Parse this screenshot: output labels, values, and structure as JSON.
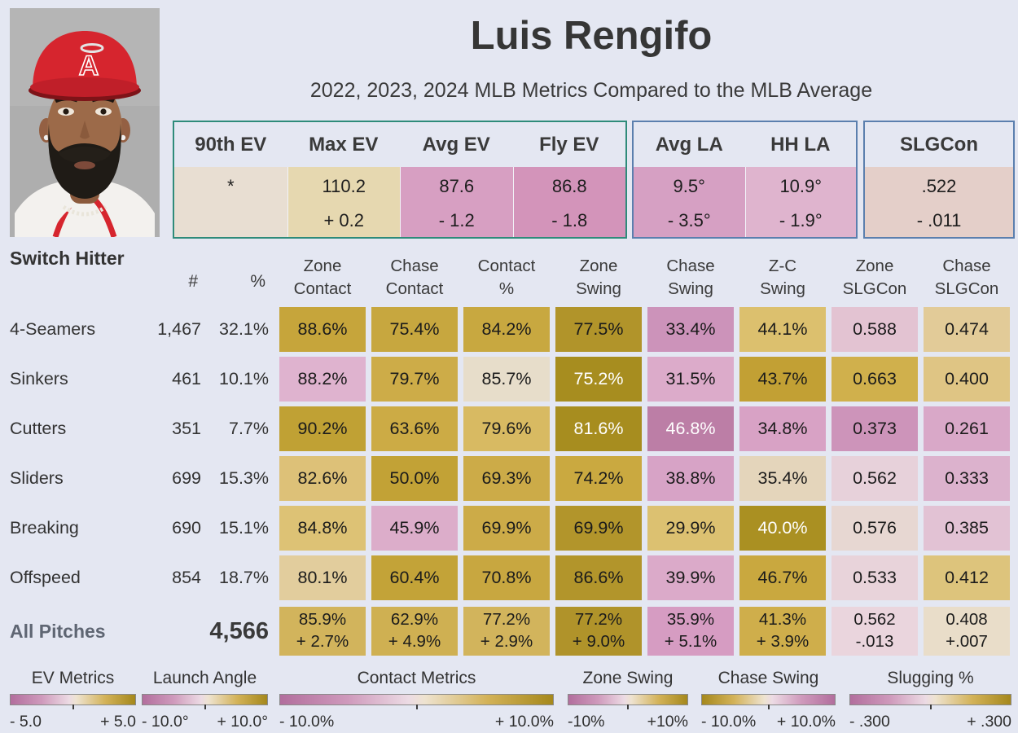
{
  "header": {
    "title": "Luis Rengifo",
    "subtitle": "2022, 2023, 2024 MLB Metrics Compared to the MLB Average",
    "handedness": "Switch Hitter"
  },
  "theme": {
    "accent_pink": "#b26e9d",
    "accent_gold": "#a5881c",
    "page_background": "#e4e7f2",
    "ev_group_border": "#2e8b7a",
    "la_group_border": "#5b7fae"
  },
  "top_metrics": [
    {
      "border": "#2e8b7a",
      "cols": [
        {
          "label": "90th EV",
          "value": "*",
          "delta": "",
          "bg": "#e8ded2"
        },
        {
          "label": "Max EV",
          "value": "110.2",
          "delta": "+ 0.2",
          "bg": "#e6d8b0"
        },
        {
          "label": "Avg EV",
          "value": "87.6",
          "delta": "- 1.2",
          "bg": "#d79fc2"
        },
        {
          "label": "Fly EV",
          "value": "86.8",
          "delta": "- 1.8",
          "bg": "#d394ba"
        }
      ]
    },
    {
      "border": "#5b7fae",
      "cols": [
        {
          "label": "Avg LA",
          "value": "9.5°",
          "delta": "- 3.5°",
          "bg": "#d6a0c3"
        },
        {
          "label": "HH LA",
          "value": "10.9°",
          "delta": "- 1.9°",
          "bg": "#dfb4ce"
        }
      ]
    },
    {
      "border": "#5b7fae",
      "cols": [
        {
          "label": "SLGCon",
          "value": ".522",
          "delta": "- .011",
          "bg": "#e4cfc9"
        }
      ]
    }
  ],
  "chart_data": {
    "type": "heatmap",
    "count_header": "#",
    "pct_header": "%",
    "columns": [
      "Zone\nContact",
      "Chase\nContact",
      "Contact\n%",
      "Zone\nSwing",
      "Chase\nSwing",
      "Z-C\nSwing",
      "Zone\nSLGCon",
      "Chase\nSLGCon"
    ],
    "rows": [
      {
        "label": "4-Seamers",
        "count": "1,467",
        "pct": "32.1%",
        "cells": [
          {
            "v": "88.6%",
            "bg": "#c6a53b"
          },
          {
            "v": "75.4%",
            "bg": "#c7a73f"
          },
          {
            "v": "84.2%",
            "bg": "#c8a840"
          },
          {
            "v": "77.5%",
            "bg": "#b1942a"
          },
          {
            "v": "33.4%",
            "bg": "#cc93ba"
          },
          {
            "v": "44.1%",
            "bg": "#dcc06e"
          },
          {
            "v": "0.588",
            "bg": "#e3c3d2"
          },
          {
            "v": "0.474",
            "bg": "#e2cb98"
          }
        ]
      },
      {
        "label": "Sinkers",
        "count": "461",
        "pct": "10.1%",
        "cells": [
          {
            "v": "88.2%",
            "bg": "#dfb3cf"
          },
          {
            "v": "79.7%",
            "bg": "#cdac48"
          },
          {
            "v": "85.7%",
            "bg": "#e7ddca"
          },
          {
            "v": "75.2%",
            "bg": "#a78d1f",
            "fg": "#ffffff"
          },
          {
            "v": "31.5%",
            "bg": "#dcabca"
          },
          {
            "v": "43.7%",
            "bg": "#c2a034"
          },
          {
            "v": "0.663",
            "bg": "#d0b04c"
          },
          {
            "v": "0.400",
            "bg": "#dfc584"
          }
        ]
      },
      {
        "label": "Cutters",
        "count": "351",
        "pct": "7.7%",
        "cells": [
          {
            "v": "90.2%",
            "bg": "#c0a134"
          },
          {
            "v": "63.6%",
            "bg": "#ccab45"
          },
          {
            "v": "79.6%",
            "bg": "#d8ba62"
          },
          {
            "v": "81.6%",
            "bg": "#a78d1f",
            "fg": "#ffffff"
          },
          {
            "v": "46.8%",
            "bg": "#bc7ea6",
            "fg": "#ffffff"
          },
          {
            "v": "34.8%",
            "bg": "#d8a2c5"
          },
          {
            "v": "0.373",
            "bg": "#cd94ba"
          },
          {
            "v": "0.261",
            "bg": "#d9a8c8"
          }
        ]
      },
      {
        "label": "Sliders",
        "count": "699",
        "pct": "15.3%",
        "cells": [
          {
            "v": "82.6%",
            "bg": "#ddc178"
          },
          {
            "v": "50.0%",
            "bg": "#c2a236"
          },
          {
            "v": "69.3%",
            "bg": "#ccab48"
          },
          {
            "v": "74.2%",
            "bg": "#caa940"
          },
          {
            "v": "38.8%",
            "bg": "#d7a3c6"
          },
          {
            "v": "35.4%",
            "bg": "#e4d5bb"
          },
          {
            "v": "0.562",
            "bg": "#e7d1da"
          },
          {
            "v": "0.333",
            "bg": "#dcb2cd"
          }
        ]
      },
      {
        "label": "Breaking",
        "count": "690",
        "pct": "15.1%",
        "cells": [
          {
            "v": "84.8%",
            "bg": "#ddc275"
          },
          {
            "v": "45.9%",
            "bg": "#dcadca"
          },
          {
            "v": "69.9%",
            "bg": "#ccab48"
          },
          {
            "v": "69.9%",
            "bg": "#b2952b"
          },
          {
            "v": "29.9%",
            "bg": "#dcc171"
          },
          {
            "v": "40.0%",
            "bg": "#aa9022",
            "fg": "#ffffff"
          },
          {
            "v": "0.576",
            "bg": "#e7d7d2"
          },
          {
            "v": "0.385",
            "bg": "#e2c2d4"
          }
        ]
      },
      {
        "label": "Offspeed",
        "count": "854",
        "pct": "18.7%",
        "cells": [
          {
            "v": "80.1%",
            "bg": "#e2cd9d"
          },
          {
            "v": "60.4%",
            "bg": "#c3a338"
          },
          {
            "v": "70.8%",
            "bg": "#c8a740"
          },
          {
            "v": "86.6%",
            "bg": "#b2952b"
          },
          {
            "v": "39.9%",
            "bg": "#dbaac9"
          },
          {
            "v": "46.7%",
            "bg": "#c9a83f"
          },
          {
            "v": "0.533",
            "bg": "#e8d3da"
          },
          {
            "v": "0.412",
            "bg": "#ddc47c"
          }
        ]
      }
    ],
    "totals": {
      "label": "All Pitches",
      "count": "4,566",
      "cells": [
        {
          "v": "85.9%",
          "d": "+ 2.7%",
          "bg": "#d2b45c"
        },
        {
          "v": "62.9%",
          "d": "+ 4.9%",
          "bg": "#cfb052"
        },
        {
          "v": "77.2%",
          "d": "+ 2.9%",
          "bg": "#d2b45c"
        },
        {
          "v": "77.2%",
          "d": "+ 9.0%",
          "bg": "#b0932a"
        },
        {
          "v": "35.9%",
          "d": "+ 5.1%",
          "bg": "#d69cc2"
        },
        {
          "v": "41.3%",
          "d": "+ 3.9%",
          "bg": "#cfae4b"
        },
        {
          "v": "0.562",
          "d": "-.013",
          "bg": "#ead5dd"
        },
        {
          "v": "0.408",
          "d": "+.007",
          "bg": "#e9ddc9"
        }
      ]
    }
  },
  "legends": [
    {
      "title": "EV Metrics",
      "min": "- 5.0",
      "max": "+ 5.0",
      "reversed": false
    },
    {
      "title": "Launch Angle",
      "min": "- 10.0°",
      "max": "+ 10.0°",
      "reversed": false
    },
    {
      "title": "Contact Metrics",
      "min": "- 10.0%",
      "max": "+ 10.0%",
      "reversed": false
    },
    {
      "title": "Zone Swing",
      "min": "-10%",
      "max": "+10%",
      "reversed": false
    },
    {
      "title": "Chase Swing",
      "min": "- 10.0%",
      "max": "+ 10.0%",
      "reversed": true
    },
    {
      "title": "Slugging %",
      "min": "- .300",
      "max": "+ .300",
      "reversed": false
    }
  ]
}
